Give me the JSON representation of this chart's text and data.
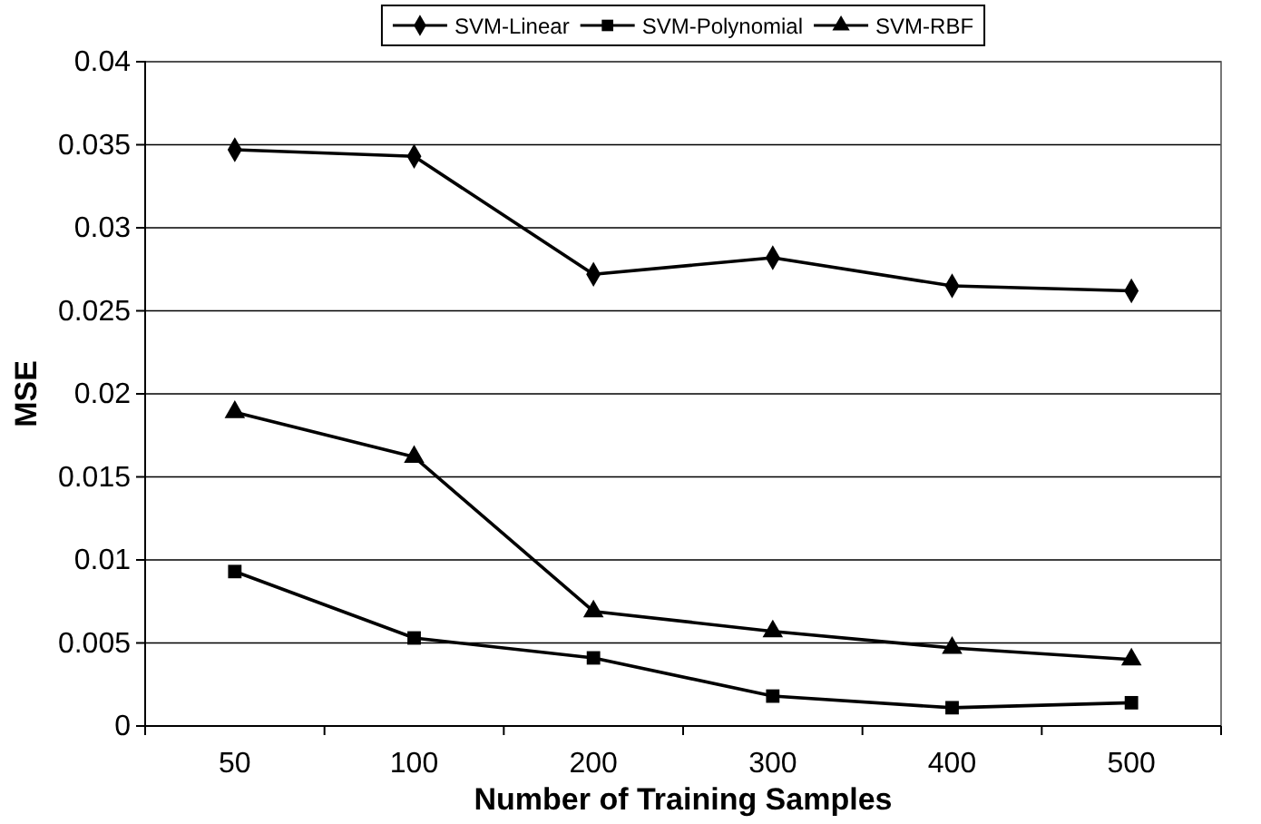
{
  "chart_data": {
    "type": "line",
    "xlabel": "Number of Training Samples",
    "ylabel": "MSE",
    "categories": [
      "50",
      "100",
      "200",
      "300",
      "400",
      "500"
    ],
    "series": [
      {
        "name": "SVM-Linear",
        "color": "#000000",
        "marker": "diamond",
        "values": [
          0.0347,
          0.0343,
          0.0272,
          0.0282,
          0.0265,
          0.0262
        ]
      },
      {
        "name": "SVM-Polynomial",
        "color": "#000000",
        "marker": "square",
        "values": [
          0.0093,
          0.0053,
          0.0041,
          0.0018,
          0.0011,
          0.0014
        ]
      },
      {
        "name": "SVM-RBF",
        "color": "#000000",
        "marker": "triangle",
        "values": [
          0.0189,
          0.0162,
          0.0069,
          0.0057,
          0.0047,
          0.004
        ]
      }
    ],
    "ylim": [
      0,
      0.04
    ],
    "yticks": [
      0,
      0.005,
      0.01,
      0.015,
      0.02,
      0.025,
      0.03,
      0.035,
      0.04
    ],
    "grid": "y",
    "legend": "top",
    "line_style": "solid"
  }
}
